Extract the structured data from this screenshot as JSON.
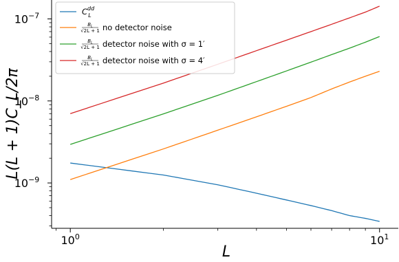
{
  "chart_data": {
    "type": "line",
    "xscale": "log",
    "yscale": "log",
    "xlim": [
      0.87,
      11.5
    ],
    "ylim": [
      2.8e-10,
      1.7e-07
    ],
    "xlabel": "L",
    "ylabel": "L(L + 1)C_L/2π",
    "x_ticks": [
      {
        "base": "10",
        "exp": "0"
      },
      {
        "base": "10",
        "exp": "1"
      }
    ],
    "y_ticks": [
      {
        "base": "10",
        "exp": "−9"
      },
      {
        "base": "10",
        "exp": "−8"
      },
      {
        "base": "10",
        "exp": "−7"
      }
    ],
    "grid": false,
    "legend_position": "top-left",
    "x": [
      1,
      2,
      3,
      4,
      5,
      6,
      7,
      8,
      9,
      10
    ],
    "series": [
      {
        "name": "C_L^dd",
        "color": "#1f77b4",
        "values": [
          1.75e-09,
          1.25e-09,
          9.5e-10,
          7.5e-10,
          6.2e-10,
          5.3e-10,
          4.6e-10,
          4e-10,
          3.7e-10,
          3.4e-10
        ]
      },
      {
        "name": "no detector noise",
        "color": "#ff7f0e",
        "values": [
          1.1e-09,
          2.6e-09,
          4.4e-09,
          6.4e-09,
          8.6e-09,
          1.1e-08,
          1.4e-08,
          1.7e-08,
          2e-08,
          2.3e-08
        ]
      },
      {
        "name": "detector noise with σ = 1′",
        "color": "#2ca02c",
        "values": [
          2.95e-09,
          6.95e-09,
          1.17e-08,
          1.72e-08,
          2.32e-08,
          2.97e-08,
          3.67e-08,
          4.4e-08,
          5.2e-08,
          6.1e-08
        ]
      },
      {
        "name": "detector noise with σ = 4′",
        "color": "#d62728",
        "values": [
          7e-09,
          1.65e-08,
          2.8e-08,
          4.1e-08,
          5.5e-08,
          7e-08,
          8.6e-08,
          1.03e-07,
          1.21e-07,
          1.43e-07
        ]
      }
    ],
    "legend": {
      "entries": [
        {
          "prefix": "C",
          "sub": "L",
          "sup": "dd",
          "text": ""
        },
        {
          "frac_num": "B",
          "frac_num_sub": "L",
          "frac_den": "√2L + 1",
          "text": "no detector noise"
        },
        {
          "frac_num": "B",
          "frac_num_sub": "L",
          "frac_den": "√2L + 1",
          "text": "detector noise with σ = 1′"
        },
        {
          "frac_num": "B",
          "frac_num_sub": "L",
          "frac_den": "√2L + 1",
          "text": "detector noise with σ = 4′"
        }
      ]
    }
  }
}
